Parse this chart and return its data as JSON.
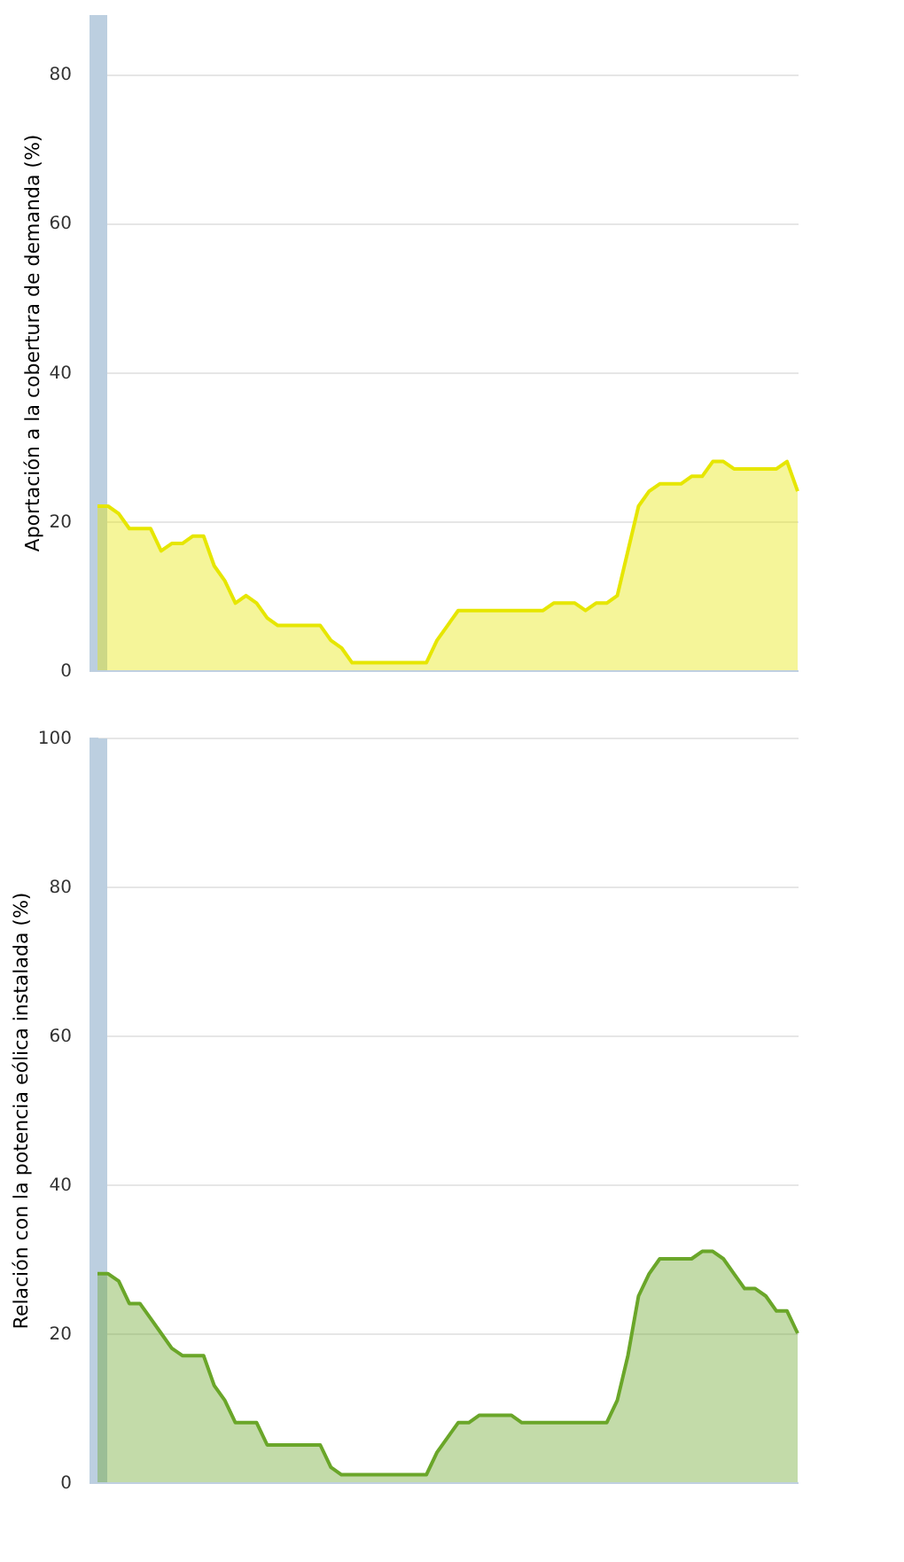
{
  "chart_data": [
    {
      "type": "area",
      "ylabel": "Aportación a la cobertura de demanda (%)",
      "categories": [
        null,
        null,
        null,
        null,
        null,
        null,
        null,
        null,
        null,
        null,
        null,
        null,
        null,
        null,
        null,
        null,
        null,
        null,
        null,
        null,
        null,
        null,
        null,
        null,
        null,
        null,
        null,
        null,
        null,
        null,
        null,
        null,
        null,
        null,
        null,
        null,
        null,
        null,
        null,
        null,
        null,
        null,
        null,
        null,
        null,
        null,
        null,
        null,
        null,
        null,
        null,
        null,
        null,
        null,
        null,
        null,
        null,
        null,
        null,
        null,
        null,
        null,
        null,
        null,
        null,
        null,
        null
      ],
      "ylim": [
        0,
        88
      ],
      "yticks": [
        0,
        20,
        40,
        60,
        80
      ],
      "grid": "y",
      "tick_labels": "y",
      "series": [
        {
          "color": "#e6e600",
          "values": [
            22,
            22,
            21,
            19,
            19,
            19,
            16,
            17,
            17,
            18,
            18,
            14,
            12,
            9,
            10,
            9,
            7,
            6,
            6,
            6,
            6,
            6,
            4,
            3,
            1,
            1,
            1,
            1,
            1,
            1,
            1,
            1,
            4,
            6,
            8,
            8,
            8,
            8,
            8,
            8,
            8,
            8,
            8,
            9,
            9,
            9,
            8,
            9,
            9,
            10,
            16,
            22,
            24,
            25,
            25,
            25,
            26,
            26,
            28,
            28,
            27,
            27,
            27,
            27,
            27,
            28,
            24
          ]
        }
      ]
    },
    {
      "type": "area",
      "ylabel": "Relación con la potencia eólica instalada (%)",
      "categories": [
        null,
        null,
        null,
        null,
        null,
        null,
        null,
        null,
        null,
        null,
        null,
        null,
        null,
        null,
        null,
        null,
        null,
        null,
        null,
        null,
        null,
        null,
        null,
        null,
        null,
        null,
        null,
        null,
        null,
        null,
        null,
        null,
        null,
        null,
        null,
        null,
        null,
        null,
        null,
        null,
        null,
        null,
        null,
        null,
        null,
        null,
        null,
        null,
        null,
        null,
        null,
        null,
        null,
        null,
        null,
        null,
        null,
        null,
        null,
        null,
        null,
        null,
        null,
        null,
        null,
        null,
        null
      ],
      "ylim": [
        0,
        100
      ],
      "yticks": [
        0,
        20,
        40,
        60,
        80,
        100
      ],
      "grid": "y",
      "tick_labels": "y",
      "series": [
        {
          "color": "#6aa629",
          "values": [
            28,
            28,
            27,
            24,
            24,
            22,
            20,
            18,
            17,
            17,
            17,
            13,
            11,
            8,
            8,
            8,
            5,
            5,
            5,
            5,
            5,
            5,
            2,
            1,
            1,
            1,
            1,
            1,
            1,
            1,
            1,
            1,
            4,
            6,
            8,
            8,
            9,
            9,
            9,
            9,
            8,
            8,
            8,
            8,
            8,
            8,
            8,
            8,
            8,
            11,
            17,
            25,
            28,
            30,
            30,
            30,
            30,
            31,
            31,
            30,
            28,
            26,
            26,
            25,
            23,
            23,
            20
          ]
        }
      ]
    }
  ]
}
